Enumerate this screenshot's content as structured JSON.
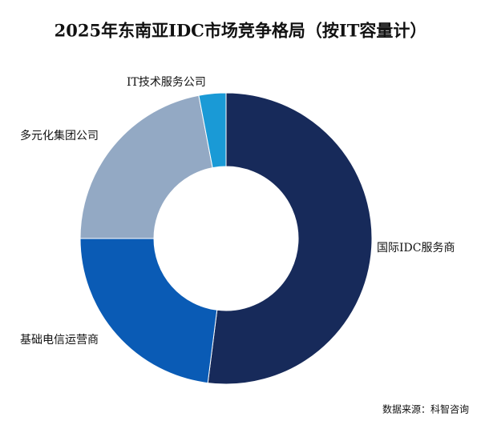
{
  "chart_data": {
    "type": "donut",
    "title": "2025年东南亚IDC市场竞争格局（按IT容量计）",
    "categories": [
      "国际IDC服务商",
      "基础电信运营商",
      "多元化集团公司",
      "IT技术服务公司"
    ],
    "values": [
      52,
      23,
      22,
      3
    ],
    "colors": [
      "#172a5a",
      "#0a5bb5",
      "#93a9c4",
      "#1a9ad6"
    ],
    "source": "数据来源：科智咨询"
  }
}
